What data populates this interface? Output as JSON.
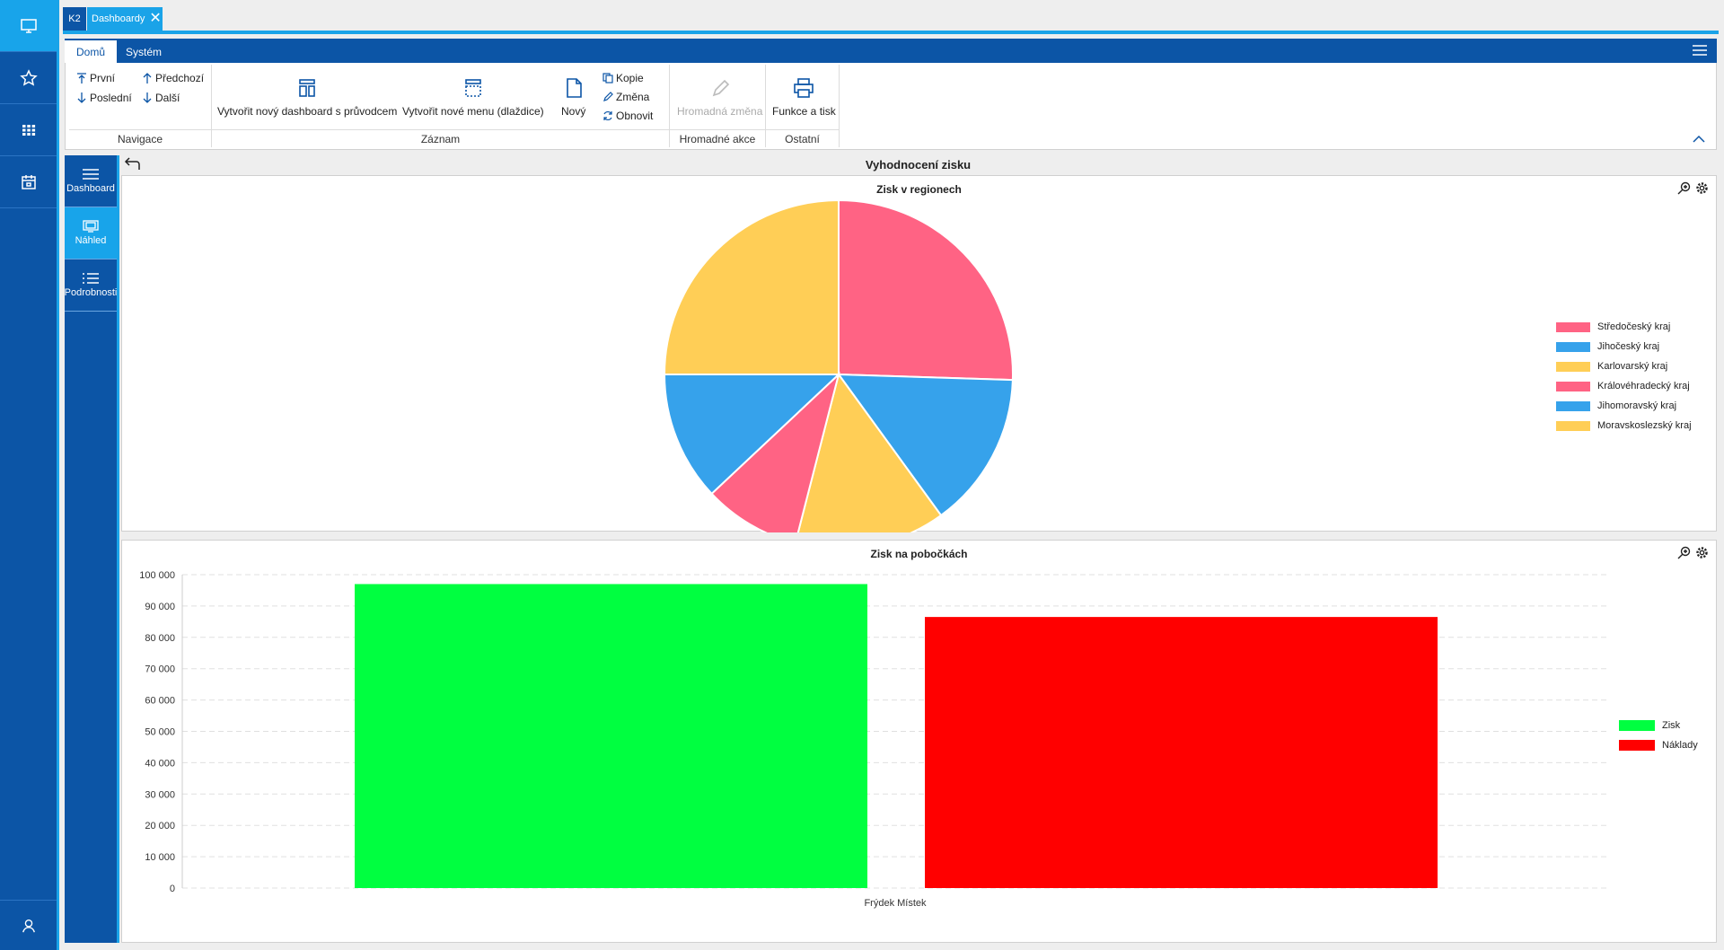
{
  "tabs": {
    "app_label": "K2",
    "dashboard_tab_label": "Dashboardy"
  },
  "ribbon": {
    "tabs": [
      {
        "label": "Domů"
      },
      {
        "label": "Systém"
      }
    ],
    "navigation": {
      "first": "První",
      "previous": "Předchozí",
      "last": "Poslední",
      "next": "Další",
      "group_label": "Navigace"
    },
    "record": {
      "new_dashboard_wizard": "Vytvořit nový dashboard s průvodcem",
      "new_menu_tiles": "Vytvořit nové menu (dlaždice)",
      "new": "Nový",
      "copy": "Kopie",
      "change": "Změna",
      "refresh": "Obnovit",
      "group_label": "Záznam"
    },
    "bulk": {
      "bulk_change": "Hromadná změna",
      "group_label": "Hromadné akce"
    },
    "other": {
      "functions_print": "Funkce a tisk",
      "group_label": "Ostatní"
    }
  },
  "sidenav": {
    "items": [
      {
        "label": "Dashboard"
      },
      {
        "label": "Náhled"
      },
      {
        "label": "Podrobnosti"
      }
    ]
  },
  "page": {
    "title": "Vyhodnocení zisku"
  },
  "chart_data": [
    {
      "type": "pie",
      "title": "Zisk v regionech",
      "legend_position": "right",
      "slices": [
        {
          "label": "Středočeský kraj",
          "value": 25.5,
          "color": "#ff6384"
        },
        {
          "label": "Jihočeský kraj",
          "value": 14.5,
          "color": "#36a2eb"
        },
        {
          "label": "Karlovarský kraj",
          "value": 14,
          "color": "#ffce56"
        },
        {
          "label": "Královéhradecký kraj",
          "value": 9,
          "color": "#ff6384"
        },
        {
          "label": "Jihomoravský kraj",
          "value": 12,
          "color": "#36a2eb"
        },
        {
          "label": "Moravskoslezský kraj",
          "value": 25,
          "color": "#ffce56"
        }
      ]
    },
    {
      "type": "bar",
      "title": "Zisk na pobočkách",
      "categories": [
        "Frýdek Místek"
      ],
      "series": [
        {
          "name": "Zisk",
          "values": [
            97000
          ],
          "color": "#00ff40"
        },
        {
          "name": "Náklady",
          "values": [
            86500
          ],
          "color": "#ff0000"
        }
      ],
      "ylim": [
        0,
        100000
      ],
      "yticks": [
        "0",
        "10 000",
        "20 000",
        "30 000",
        "40 000",
        "50 000",
        "60 000",
        "70 000",
        "80 000",
        "90 000",
        "100 000"
      ],
      "grid": true,
      "legend_position": "right"
    }
  ]
}
